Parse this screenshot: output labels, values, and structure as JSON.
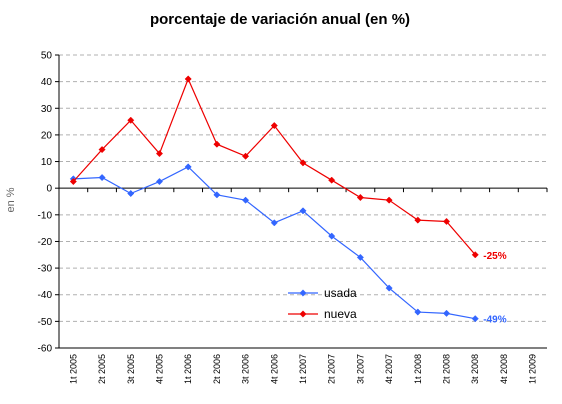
{
  "chart_data": {
    "type": "line",
    "title": "porcentaje de variación anual (en %)",
    "ylabel": "en %",
    "xlabel": "",
    "ylim": [
      -60,
      50
    ],
    "yticks": [
      50,
      40,
      30,
      20,
      10,
      0,
      -10,
      -20,
      -30,
      -40,
      -50,
      -60
    ],
    "grid": true,
    "legend": "center-bottom",
    "categories": [
      "1t 2005",
      "2t 2005",
      "3t 2005",
      "4t 2005",
      "1t 2006",
      "2t 2006",
      "3t 2006",
      "4t 2006",
      "1t 2007",
      "2t 2007",
      "3t 2007",
      "4t 2007",
      "1t 2008",
      "2t 2008",
      "3t 2008",
      "4t 2008",
      "1t 2009"
    ],
    "series": [
      {
        "name": "usada",
        "color": "#3366ff",
        "values": [
          3.5,
          4,
          -2,
          2.5,
          8,
          -2.5,
          -4.5,
          -13,
          -8.5,
          -18,
          -26,
          -37.5,
          -46.5,
          -47,
          -49,
          null,
          null
        ]
      },
      {
        "name": "nueva",
        "color": "#ee0000",
        "values": [
          2.5,
          14.5,
          25.5,
          13,
          41,
          16.5,
          12,
          23.5,
          9.5,
          3,
          -3.5,
          -4.5,
          -12,
          -12.5,
          -25,
          null,
          null
        ]
      }
    ],
    "annotations": [
      {
        "text": "-25%",
        "series": 1,
        "index": 14,
        "color": "#ee0000"
      },
      {
        "text": "-49%",
        "series": 0,
        "index": 14,
        "color": "#3366ff"
      }
    ]
  }
}
